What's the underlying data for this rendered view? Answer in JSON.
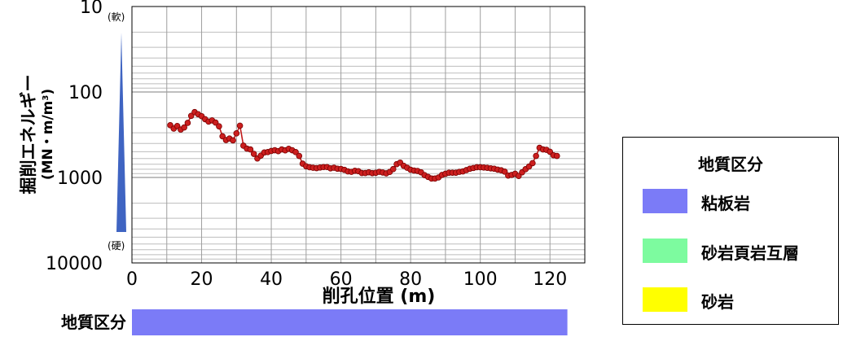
{
  "chart_data": {
    "type": "line",
    "ylabel": "掘削エネルギー",
    "ylabel_unit": "(MN・m/m",
    "ylabel_unit_sup": "3",
    "ylabel_unit_close": ")",
    "xlabel": "削孔位置 (m)",
    "x_ticks": [
      0,
      20,
      40,
      60,
      80,
      100,
      120
    ],
    "xlim": [
      0,
      130
    ],
    "y_scale": "log",
    "y_inverted": true,
    "ylim": [
      10,
      10000
    ],
    "y_ticks": [
      10,
      100,
      1000,
      10000
    ],
    "scale_top_label": "(軟)",
    "scale_bottom_label": "(硬)",
    "marker_color": "#cc1f1f",
    "marker_edge": "#7a0000",
    "line_color": "#c01818",
    "grid": true,
    "series": [
      {
        "x": [
          11,
          12,
          13,
          14,
          15,
          16,
          17,
          18,
          19,
          20,
          21,
          22,
          23,
          24,
          25,
          26,
          27,
          28,
          29,
          30,
          31,
          32,
          33,
          34,
          35,
          36,
          37,
          38,
          39,
          40,
          41,
          42,
          43,
          44,
          45,
          46,
          47,
          48,
          49,
          50,
          51,
          52,
          53,
          54,
          55,
          56,
          57,
          58,
          59,
          60,
          61,
          62,
          63,
          64,
          65,
          66,
          67,
          68,
          69,
          70,
          71,
          72,
          73,
          74,
          75,
          76,
          77,
          78,
          79,
          80,
          81,
          82,
          83,
          84,
          85,
          86,
          87,
          88,
          89,
          90,
          91,
          92,
          93,
          94,
          95,
          96,
          97,
          98,
          99,
          100,
          101,
          102,
          103,
          104,
          105,
          106,
          107,
          108,
          109,
          110,
          111,
          112,
          113,
          114,
          115,
          116,
          117,
          118,
          119,
          120,
          121,
          122
        ],
        "y": [
          245,
          268,
          250,
          275,
          260,
          230,
          190,
          172,
          182,
          192,
          208,
          222,
          215,
          228,
          252,
          330,
          365,
          350,
          368,
          305,
          248,
          425,
          460,
          470,
          530,
          600,
          555,
          510,
          505,
          490,
          480,
          492,
          470,
          482,
          462,
          480,
          505,
          560,
          690,
          740,
          760,
          770,
          778,
          765,
          756,
          756,
          782,
          770,
          790,
          795,
          815,
          850,
          860,
          835,
          845,
          888,
          888,
          870,
          890,
          882,
          860,
          875,
          895,
          862,
          798,
          700,
          670,
          730,
          770,
          812,
          830,
          840,
          870,
          940,
          985,
          1030,
          1030,
          1000,
          935,
          905,
          880,
          880,
          880,
          860,
          850,
          820,
          790,
          775,
          760,
          760,
          765,
          771,
          782,
          790,
          810,
          825,
          855,
          950,
          935,
          905,
          960,
          870,
          800,
          745,
          680,
          560,
          450,
          470,
          475,
          500,
          550,
          560
        ]
      }
    ]
  },
  "legend": {
    "title": "地質区分",
    "items": [
      {
        "label": "粘板岩",
        "color": "#7b7bf7"
      },
      {
        "label": "砂岩頁岩互層",
        "color": "#7dfb9f"
      },
      {
        "label": "砂岩",
        "color": "#ffff00"
      }
    ]
  },
  "geology_bar": {
    "label": "地質区分",
    "color": "#7b7bf7",
    "x_start": 0,
    "x_end": 125
  },
  "hardness_arrow": {
    "color": "#3f64c2"
  }
}
